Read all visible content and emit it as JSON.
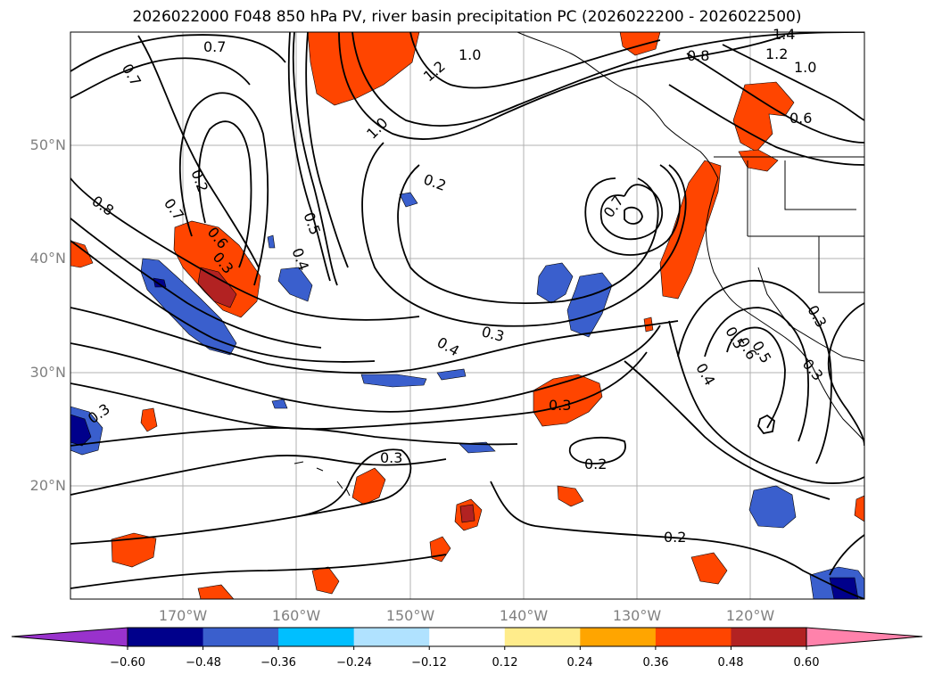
{
  "title": "2026022000 F048 850 hPa PV, river basin precipitation PC (2026022200 - 2026022500)",
  "lat_labels": [
    "50°N",
    "40°N",
    "30°N",
    "20°N"
  ],
  "lon_labels": [
    "170°W",
    "160°W",
    "150°W",
    "140°W",
    "130°W",
    "120°W"
  ],
  "contour_labels": [
    "0.7",
    "0.7",
    "1.4",
    "1.2",
    "1.0",
    "1.2",
    "1.0",
    "0.8",
    "0.6",
    "1.0",
    "0.7",
    "0.2",
    "0.8",
    "0.2",
    "0.7",
    "0.6",
    "0.5",
    "0.3",
    "0.4",
    "0.3",
    "0.4",
    "0.5",
    "0.6",
    "0.5",
    "0.3",
    "0.4",
    "0.3",
    "0.3",
    "0.3",
    "0.2",
    "0.2"
  ],
  "colorbar": {
    "ticks": [
      "−0.60",
      "−0.48",
      "−0.36",
      "−0.24",
      "−0.12",
      "0.12",
      "0.24",
      "0.36",
      "0.48",
      "0.60"
    ],
    "colors": [
      "#9932cc",
      "#00008b",
      "#3a5fcd",
      "#00bfff",
      "#b0e2ff",
      "#ffffff",
      "#ffec8b",
      "#ffa500",
      "#ff4500",
      "#b22222",
      "#ff82ab"
    ]
  }
}
